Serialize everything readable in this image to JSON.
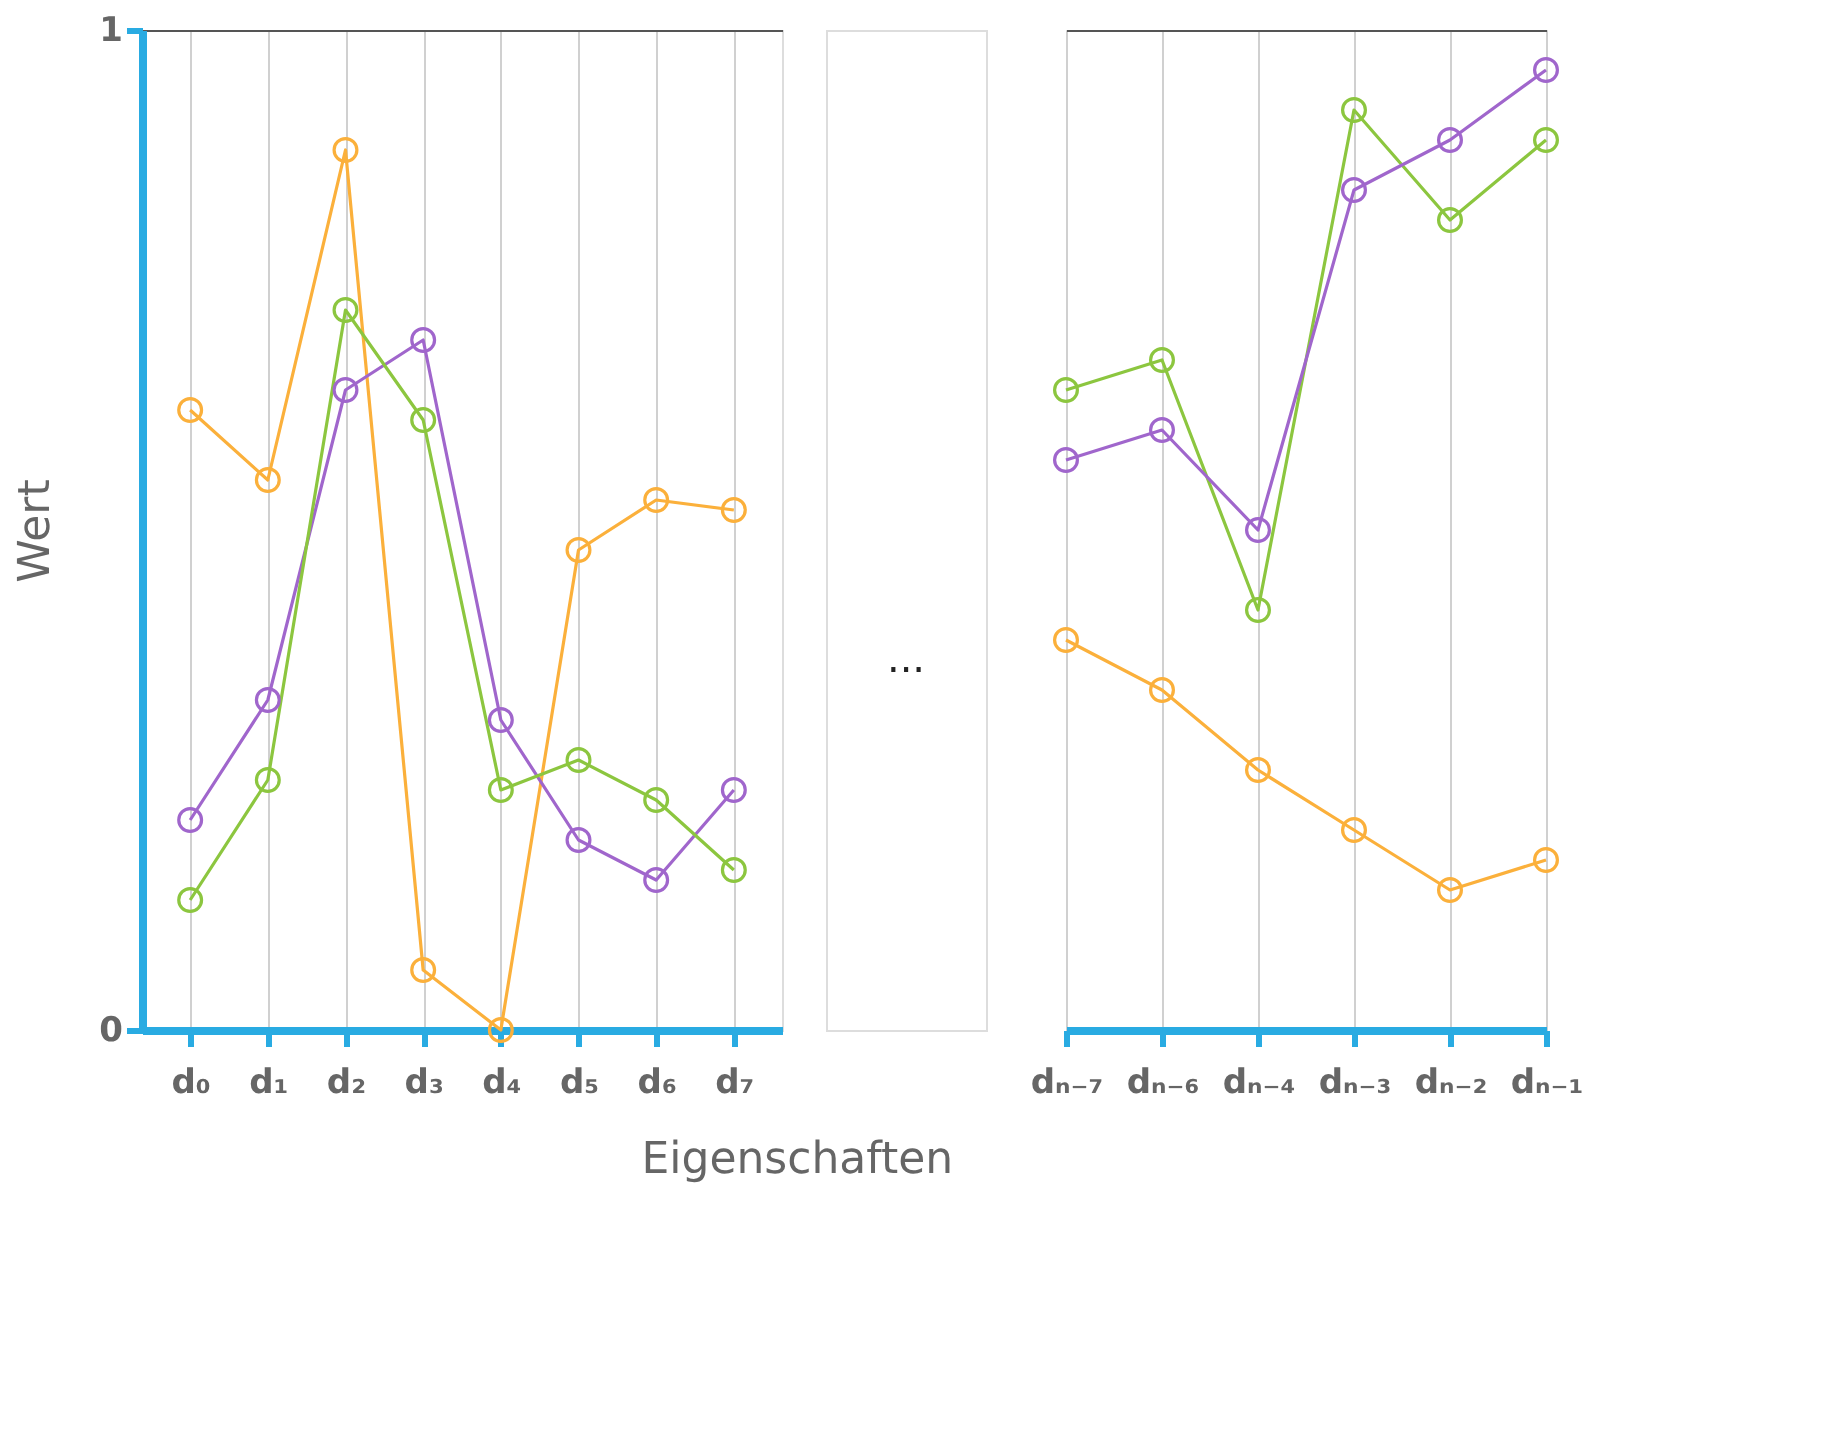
{
  "chart_data": [
    {
      "type": "line",
      "xlabel": "Eigenschaften",
      "ylabel": "Wert",
      "categories": [
        "d₀",
        "d₁",
        "d₂",
        "d₃",
        "d₄",
        "d₅",
        "d₆",
        "d₇"
      ],
      "ylim": [
        0,
        1
      ],
      "yticks": [
        0,
        1
      ],
      "grid": true,
      "marker": "circle",
      "line_style": "solid",
      "annotations": [
        "..."
      ],
      "series": [
        {
          "color": "#fbb03b",
          "values": [
            0.62,
            0.55,
            0.88,
            0.06,
            0.0,
            0.48,
            0.53,
            0.52
          ]
        },
        {
          "color": "#a066cc",
          "values": [
            0.21,
            0.33,
            0.64,
            0.69,
            0.31,
            0.19,
            0.15,
            0.24
          ]
        },
        {
          "color": "#8cc63f",
          "values": [
            0.13,
            0.25,
            0.72,
            0.61,
            0.24,
            0.27,
            0.23,
            0.16
          ]
        }
      ]
    },
    {
      "type": "line",
      "categories": [
        "dₙ₋₇",
        "dₙ₋₆",
        "dₙ₋₄",
        "dₙ₋₃",
        "dₙ₋₂",
        "dₙ₋₁"
      ],
      "ylim": [
        0,
        1
      ],
      "yticks": [
        0,
        1
      ],
      "grid": true,
      "marker": "circle",
      "line_style": "solid",
      "tick_labels": "x",
      "series": [
        {
          "color": "#8cc63f",
          "values": [
            0.64,
            0.67,
            0.42,
            0.92,
            0.81,
            0.89
          ]
        },
        {
          "color": "#a066cc",
          "values": [
            0.57,
            0.6,
            0.5,
            0.84,
            0.89,
            0.96
          ]
        },
        {
          "color": "#fbb03b",
          "values": [
            0.39,
            0.34,
            0.26,
            0.2,
            0.14,
            0.17
          ]
        }
      ]
    }
  ]
}
